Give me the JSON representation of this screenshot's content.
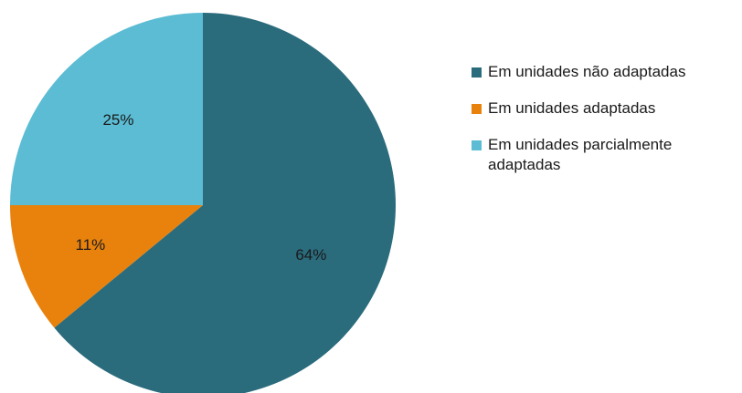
{
  "chart_data": {
    "type": "pie",
    "title": "",
    "slices": [
      {
        "name": "Em unidades não adaptadas",
        "value": 64,
        "label": "64%",
        "color": "#2a6b7c"
      },
      {
        "name": "Em unidades adaptadas",
        "value": 11,
        "label": "11%",
        "color": "#e8820c"
      },
      {
        "name": "Em unidades parcialmente adaptadas",
        "value": 25,
        "label": "25%",
        "color": "#5bbcd3"
      }
    ],
    "legend_position": "right"
  }
}
